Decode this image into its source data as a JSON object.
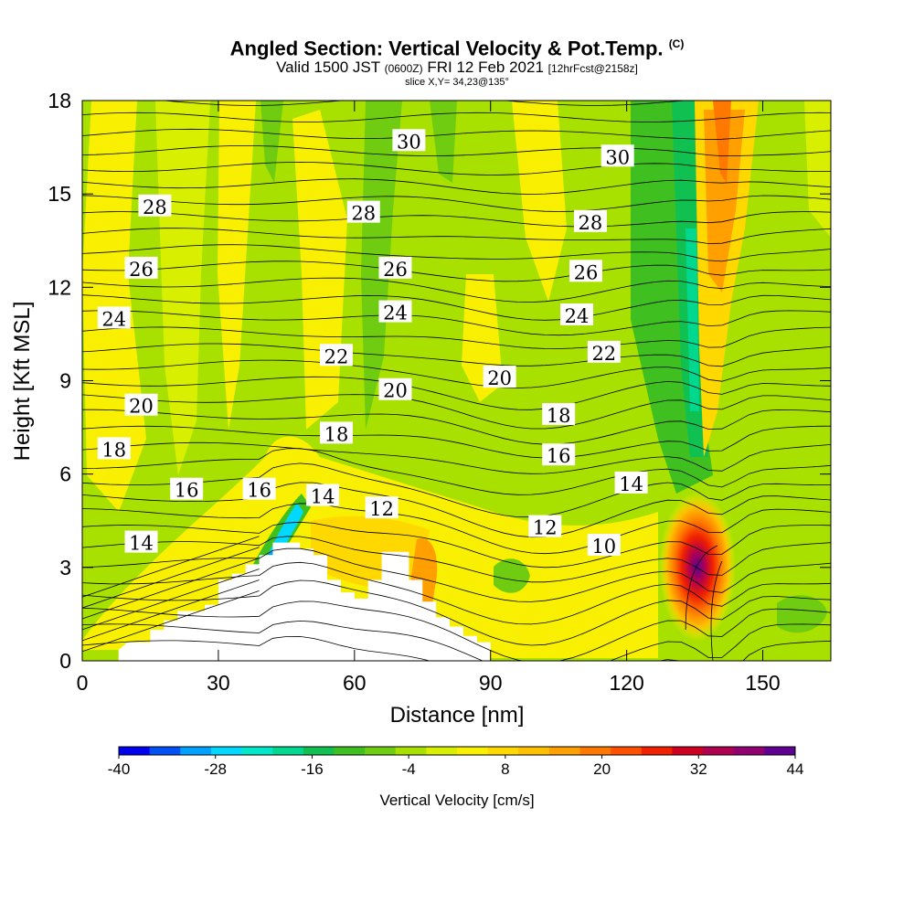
{
  "header": {
    "title": "Angled Section: Vertical Velocity & Pot.Temp.",
    "title_suffix": "(C)",
    "valid_prefix": "Valid 1500 JST",
    "valid_utc": "(0600Z)",
    "valid_date": "FRI 12 Feb 2021",
    "forecast": "[12hrFcst@2158z]",
    "slice": "slice X,Y= 34,23@135°"
  },
  "chart_data": {
    "type": "heatmap",
    "xlabel": "Distance [nm]",
    "ylabel": "Height [Kft MSL]",
    "xlim": [
      0,
      165
    ],
    "ylim": [
      0,
      18
    ],
    "x_ticks": [
      0,
      30,
      60,
      90,
      120,
      150
    ],
    "y_ticks": [
      0,
      3,
      6,
      9,
      12,
      15,
      18
    ],
    "colorbar": {
      "label": "Vertical Velocity [cm/s]",
      "tick_labels": [
        -40,
        -28,
        -16,
        -4,
        8,
        20,
        32,
        44
      ],
      "levels": [
        -40,
        -36,
        -32,
        -28,
        -24,
        -20,
        -16,
        -12,
        -8,
        -4,
        0,
        4,
        8,
        12,
        16,
        20,
        24,
        28,
        32,
        36,
        40,
        44
      ],
      "colors": [
        "#0000f0",
        "#0050f5",
        "#00a0ff",
        "#00d8ff",
        "#00e8c8",
        "#00d890",
        "#10c050",
        "#40c020",
        "#70cc10",
        "#a8e000",
        "#d8f000",
        "#f8f000",
        "#ffd800",
        "#ffc000",
        "#ffa000",
        "#ff7800",
        "#ff5000",
        "#f02000",
        "#d00020",
        "#b00050",
        "#900070",
        "#600090"
      ]
    },
    "theta_contour_labels": [
      {
        "value": "30",
        "x": 72,
        "y": 16.7
      },
      {
        "value": "30",
        "x": 118,
        "y": 16.2
      },
      {
        "value": "28",
        "x": 16,
        "y": 14.6
      },
      {
        "value": "28",
        "x": 62,
        "y": 14.4
      },
      {
        "value": "28",
        "x": 112,
        "y": 14.1
      },
      {
        "value": "26",
        "x": 13,
        "y": 12.6
      },
      {
        "value": "26",
        "x": 69,
        "y": 12.6
      },
      {
        "value": "26",
        "x": 111,
        "y": 12.5
      },
      {
        "value": "24",
        "x": 7,
        "y": 11.0
      },
      {
        "value": "24",
        "x": 69,
        "y": 11.2
      },
      {
        "value": "24",
        "x": 109,
        "y": 11.1
      },
      {
        "value": "22",
        "x": 56,
        "y": 9.8
      },
      {
        "value": "22",
        "x": 115,
        "y": 9.9
      },
      {
        "value": "20",
        "x": 13,
        "y": 8.2
      },
      {
        "value": "20",
        "x": 69,
        "y": 8.7
      },
      {
        "value": "20",
        "x": 92,
        "y": 9.1
      },
      {
        "value": "18",
        "x": 7,
        "y": 6.8
      },
      {
        "value": "18",
        "x": 56,
        "y": 7.3
      },
      {
        "value": "18",
        "x": 105,
        "y": 7.9
      },
      {
        "value": "16",
        "x": 23,
        "y": 5.5
      },
      {
        "value": "16",
        "x": 39,
        "y": 5.5
      },
      {
        "value": "16",
        "x": 105,
        "y": 6.6
      },
      {
        "value": "14",
        "x": 13,
        "y": 3.8
      },
      {
        "value": "14",
        "x": 53,
        "y": 5.3
      },
      {
        "value": "14",
        "x": 121,
        "y": 5.7
      },
      {
        "value": "12",
        "x": 66,
        "y": 4.9
      },
      {
        "value": "12",
        "x": 102,
        "y": 4.3
      },
      {
        "value": "10",
        "x": 115,
        "y": 3.7
      }
    ]
  }
}
